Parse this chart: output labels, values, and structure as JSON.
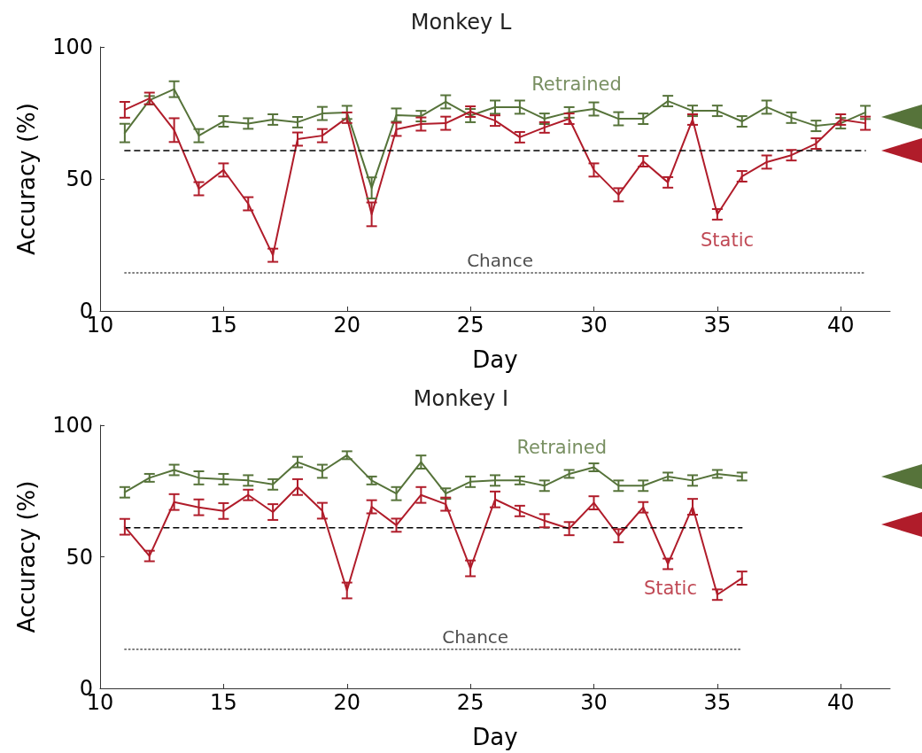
{
  "chart_data": [
    {
      "type": "line",
      "title": "Monkey L",
      "xlabel": "Day",
      "ylabel": "Accuracy (%)",
      "x": [
        11,
        12,
        13,
        14,
        15,
        16,
        17,
        18,
        19,
        20,
        21,
        22,
        23,
        24,
        25,
        26,
        27,
        28,
        29,
        30,
        31,
        32,
        33,
        34,
        35,
        36,
        37,
        38,
        39,
        40,
        41
      ],
      "series": [
        {
          "name": "Retrained",
          "color": "#56733a",
          "values": [
            67.4,
            79.8,
            84,
            66.4,
            71.8,
            71,
            72.5,
            71.5,
            74.8,
            75.2,
            46.6,
            74.2,
            73.8,
            79.2,
            74,
            77.2,
            77.2,
            72.8,
            75.2,
            76.5,
            72.8,
            72.8,
            79.5,
            75.8,
            75.8,
            71.8,
            77.2,
            73.2,
            70.1,
            71.1,
            75.2
          ],
          "errors": [
            3.5,
            1.6,
            3,
            2.5,
            2,
            2,
            2,
            2,
            2.5,
            2.5,
            4,
            2.5,
            2,
            2.5,
            2.5,
            2.5,
            2.5,
            2,
            2,
            2.5,
            2.5,
            2,
            2,
            2,
            2,
            2,
            2.5,
            2,
            2,
            2,
            2.5
          ]
        },
        {
          "name": "Static",
          "color": "#b01c2a",
          "values": [
            76.2,
            80.5,
            68.5,
            46.3,
            53.4,
            40.6,
            21.1,
            65.1,
            66.4,
            73.2,
            36.6,
            68.8,
            70.8,
            71.1,
            75.5,
            72.1,
            65.8,
            69.5,
            72.8,
            53.4,
            44,
            56.7,
            48.7,
            72.5,
            36.6,
            51,
            56.4,
            59,
            63.4,
            72.5,
            71.1
          ],
          "errors": [
            3,
            2.2,
            4.5,
            2.5,
            2.5,
            2.5,
            2.5,
            2.5,
            2.5,
            2,
            4.5,
            2.5,
            2.5,
            2.5,
            2,
            2,
            2,
            2,
            2,
            2.5,
            2.5,
            2,
            2,
            2,
            2,
            2,
            2.5,
            2,
            2,
            2,
            2.5
          ]
        },
        {
          "type": "line",
          "x": [
            11,
            41
          ],
          "color": "#000000",
          "line_style": "dashed",
          "values": [
            60.7,
            60.7
          ]
        },
        {
          "type": "line",
          "name": "Chance",
          "x": [
            11,
            41
          ],
          "color": "#555555",
          "line_style": "dotted",
          "values": [
            14.4,
            14.4
          ]
        }
      ],
      "xlim": [
        10,
        42
      ],
      "xticks": [
        10,
        15,
        20,
        25,
        30,
        35,
        40
      ],
      "ylim": [
        0,
        100
      ],
      "yticks": [
        0,
        50,
        100
      ],
      "grid": false,
      "legend": false,
      "marker": "none",
      "line_style": "solid"
    },
    {
      "type": "line",
      "title": "Monkey I",
      "xlabel": "Day",
      "ylabel": "Accuracy (%)",
      "x": [
        11,
        12,
        13,
        14,
        15,
        16,
        17,
        18,
        19,
        20,
        21,
        22,
        23,
        24,
        25,
        26,
        27,
        28,
        29,
        30,
        31,
        32,
        33,
        34,
        35,
        36
      ],
      "series": [
        {
          "name": "Retrained",
          "color": "#56733a",
          "values": [
            74.5,
            80,
            83,
            80,
            79.5,
            79,
            77.5,
            86,
            82.5,
            88.6,
            79,
            74,
            86,
            74,
            78.5,
            79,
            79,
            77,
            81.5,
            84,
            77,
            77,
            80.5,
            79,
            81.5,
            80.5
          ],
          "errors": [
            2,
            1.5,
            2,
            2.5,
            2,
            2,
            2,
            2,
            2.5,
            1.5,
            1.5,
            2.5,
            2.5,
            2,
            2,
            2,
            1.5,
            2,
            1.5,
            1.5,
            2,
            2,
            1.5,
            2,
            1.5,
            1.5
          ]
        },
        {
          "name": "Static",
          "color": "#b01c2a",
          "values": [
            61.4,
            50.3,
            70.8,
            68.8,
            67.4,
            73.5,
            67,
            76.5,
            67.5,
            37.2,
            69,
            62,
            73.5,
            70,
            45.6,
            71.8,
            67.4,
            63.7,
            60.7,
            70.5,
            58,
            68.8,
            47.3,
            69,
            35.6,
            41.9
          ],
          "errors": [
            3,
            2,
            3,
            3,
            3,
            2,
            3,
            3,
            3,
            3,
            2.5,
            2.5,
            3,
            2.5,
            3,
            3,
            2,
            2.5,
            2.5,
            2.5,
            2.5,
            2,
            2,
            3,
            2,
            2.5
          ]
        },
        {
          "type": "line",
          "x": [
            11,
            36
          ],
          "color": "#000000",
          "line_style": "dashed",
          "values": [
            61,
            61
          ]
        },
        {
          "type": "line",
          "name": "Chance",
          "x": [
            11,
            36
          ],
          "color": "#555555",
          "line_style": "dotted",
          "values": [
            14.8,
            14.8
          ]
        }
      ],
      "xlim": [
        10,
        42
      ],
      "xticks": [
        10,
        15,
        20,
        25,
        30,
        35,
        40
      ],
      "ylim": [
        0,
        100
      ],
      "yticks": [
        0,
        50,
        100
      ],
      "grid": false,
      "legend": false,
      "marker": "none",
      "line_style": "solid"
    }
  ]
}
